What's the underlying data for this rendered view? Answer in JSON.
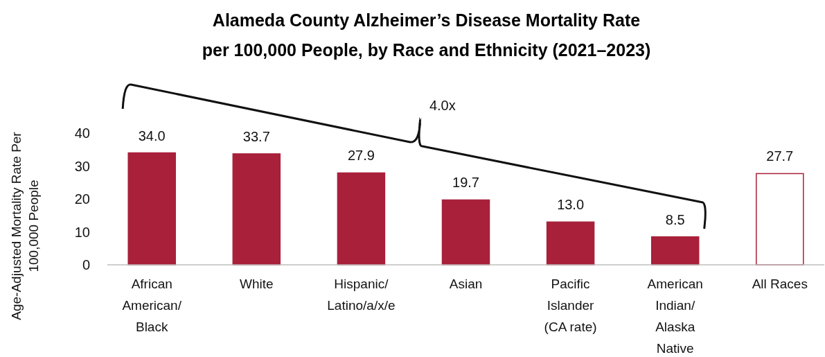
{
  "chart_data": {
    "type": "bar",
    "title": "Alameda County Alzheimer’s Disease Mortality Rate",
    "subtitle": "per 100,000 People, by Race and Ethnicity (2021–2023)",
    "ylabel": "Age-Adjusted Mortality Rate Per 100,000 People",
    "categories": [
      "African American/ Black",
      "White",
      "Hispanic/ Latino/a/x/e",
      "Asian",
      "Pacific Islander (CA rate)",
      "American Indian/ Alaska Native",
      "All Races"
    ],
    "values": [
      34.0,
      33.7,
      27.9,
      19.7,
      13.0,
      8.5,
      27.7
    ],
    "value_labels": [
      "34.0",
      "33.7",
      "27.9",
      "19.7",
      "13.0",
      "8.5",
      "27.7"
    ],
    "color": "#a8203a",
    "colors": [
      "#a8203a",
      "#a8203a",
      "#a8203a",
      "#a8203a",
      "#a8203a",
      "#a8203a",
      "#ffffff"
    ],
    "ylim": [
      0,
      40
    ],
    "yticks": [
      0,
      10,
      20,
      30,
      40
    ],
    "grid": false,
    "annotations": [
      "4.0x"
    ]
  }
}
